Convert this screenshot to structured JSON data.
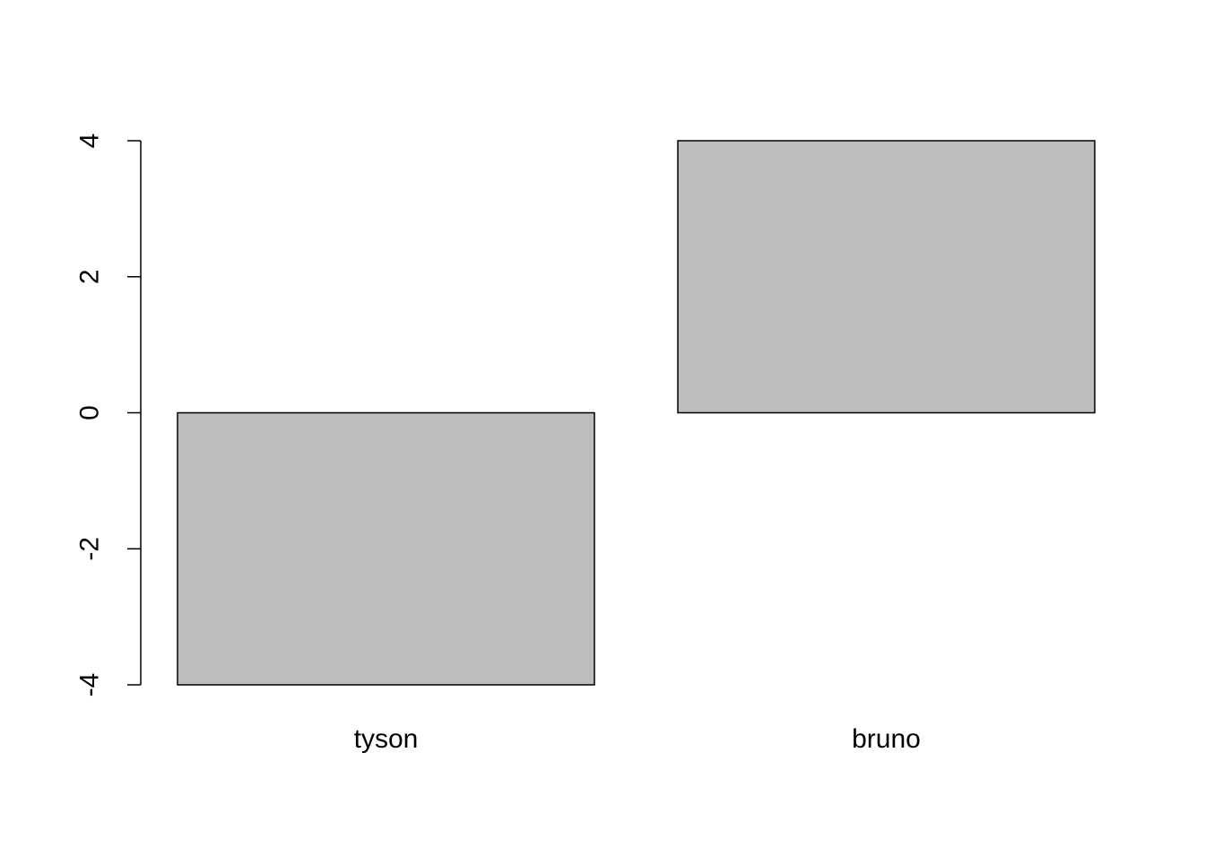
{
  "chart_data": {
    "type": "bar",
    "categories": [
      "tyson",
      "bruno"
    ],
    "values": [
      -4,
      4
    ],
    "title": "",
    "xlabel": "",
    "ylabel": "",
    "ylim": [
      -4,
      4
    ],
    "yticks": [
      "-4",
      "-2",
      "0",
      "2",
      "4"
    ],
    "grid": false,
    "bar_color": "#bebebe",
    "border_color": "#000000"
  }
}
